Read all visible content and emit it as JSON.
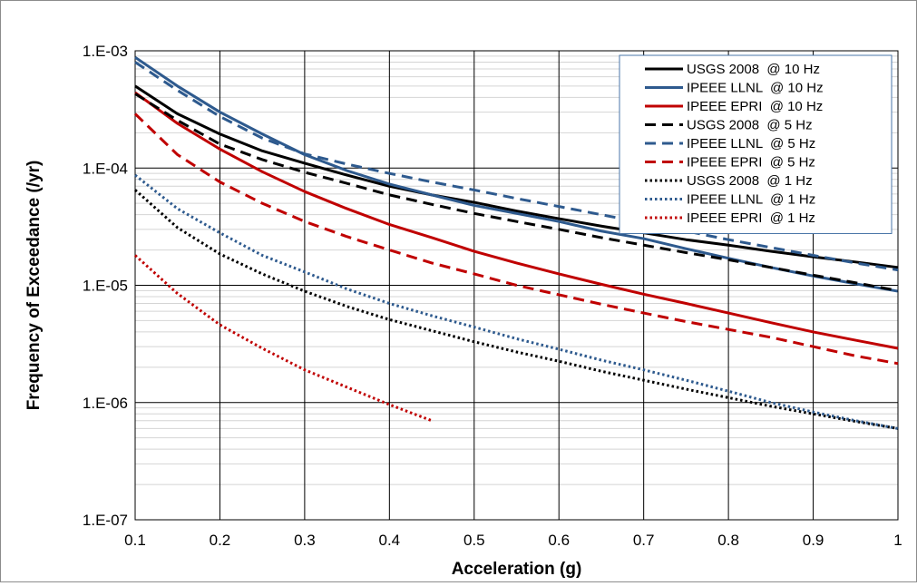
{
  "chart_data": {
    "type": "line",
    "title": "",
    "xlabel": "Acceleration (g)",
    "ylabel": "Frequency of Exceedance (/yr)",
    "x_scale": "linear",
    "y_scale": "log",
    "xlim": [
      0.1,
      1.0
    ],
    "ylim": [
      1e-07,
      0.001
    ],
    "x_ticks": [
      0.1,
      0.2,
      0.3,
      0.4,
      0.5,
      0.6,
      0.7,
      0.8,
      0.9,
      1.0
    ],
    "x_tick_labels": [
      "0.1",
      "0.2",
      "0.3",
      "0.4",
      "0.5",
      "0.6",
      "0.7",
      "0.8",
      "0.9",
      "1"
    ],
    "y_ticks": [
      1e-07,
      1e-06,
      1e-05,
      0.0001,
      0.001
    ],
    "y_tick_labels": [
      "1.E-07",
      "1.E-06",
      "1.E-05",
      "1.E-04",
      "1.E-03"
    ],
    "grid": {
      "major": true,
      "minor_y": true
    },
    "legend_position": "top-right",
    "x": [
      0.1,
      0.15,
      0.2,
      0.25,
      0.3,
      0.35,
      0.4,
      0.45,
      0.5,
      0.55,
      0.6,
      0.65,
      0.7,
      0.75,
      0.8,
      0.85,
      0.9,
      0.95,
      1.0
    ],
    "series": [
      {
        "name": "USGS 2008  @ 10 Hz",
        "color": "#000000",
        "dash": "solid",
        "values": [
          0.0005,
          0.00029,
          0.000195,
          0.00014,
          0.00011,
          8.7e-05,
          7e-05,
          5.9e-05,
          5.1e-05,
          4.3e-05,
          3.7e-05,
          3.2e-05,
          2.8e-05,
          2.45e-05,
          2.2e-05,
          1.95e-05,
          1.75e-05,
          1.58e-05,
          1.42e-05
        ]
      },
      {
        "name": "IPEEE LLNL  @ 10 Hz",
        "color": "#2e5a8e",
        "dash": "solid",
        "values": [
          0.00088,
          0.0005,
          0.0003,
          0.000195,
          0.00013,
          9.5e-05,
          7.3e-05,
          5.9e-05,
          4.8e-05,
          4.1e-05,
          3.5e-05,
          2.9e-05,
          2.5e-05,
          2.05e-05,
          1.7e-05,
          1.42e-05,
          1.2e-05,
          1.03e-05,
          8.9e-06
        ]
      },
      {
        "name": "IPEEE EPRI  @ 10 Hz",
        "color": "#c00000",
        "dash": "solid",
        "values": [
          0.00044,
          0.00024,
          0.000145,
          9.3e-05,
          6.3e-05,
          4.5e-05,
          3.3e-05,
          2.55e-05,
          1.95e-05,
          1.55e-05,
          1.25e-05,
          1.02e-05,
          8.4e-06,
          7e-06,
          5.8e-06,
          4.8e-06,
          4e-06,
          3.4e-06,
          2.9e-06
        ]
      },
      {
        "name": "USGS 2008  @ 5 Hz",
        "color": "#000000",
        "dash": "dashed",
        "values": [
          0.00043,
          0.000255,
          0.00016,
          0.000118,
          9.2e-05,
          7.4e-05,
          5.9e-05,
          4.9e-05,
          4.1e-05,
          3.5e-05,
          3e-05,
          2.55e-05,
          2.2e-05,
          1.9e-05,
          1.65e-05,
          1.42e-05,
          1.22e-05,
          1.05e-05,
          9e-06
        ]
      },
      {
        "name": "IPEEE LLNL  @ 5 Hz",
        "color": "#2e5a8e",
        "dash": "dashed",
        "values": [
          0.0008,
          0.00046,
          0.000275,
          0.00018,
          0.000132,
          0.000108,
          9e-05,
          7.6e-05,
          6.5e-05,
          5.5e-05,
          4.7e-05,
          4e-05,
          3.4e-05,
          2.9e-05,
          2.45e-05,
          2.1e-05,
          1.8e-05,
          1.55e-05,
          1.35e-05
        ]
      },
      {
        "name": "IPEEE EPRI  @ 5 Hz",
        "color": "#c00000",
        "dash": "dashed",
        "values": [
          0.00029,
          0.00013,
          7.6e-05,
          5e-05,
          3.5e-05,
          2.6e-05,
          2e-05,
          1.55e-05,
          1.25e-05,
          1e-05,
          8.3e-06,
          6.9e-06,
          5.8e-06,
          4.9e-06,
          4.2e-06,
          3.6e-06,
          3e-06,
          2.5e-06,
          2.15e-06
        ]
      },
      {
        "name": "USGS 2008  @ 1 Hz",
        "color": "#000000",
        "dash": "dotted",
        "values": [
          6.5e-05,
          3.1e-05,
          1.85e-05,
          1.25e-05,
          8.9e-06,
          6.6e-06,
          5.1e-06,
          4.1e-06,
          3.3e-06,
          2.7e-06,
          2.25e-06,
          1.85e-06,
          1.55e-06,
          1.3e-06,
          1.1e-06,
          9.3e-07,
          8e-07,
          6.9e-07,
          6e-07
        ]
      },
      {
        "name": "IPEEE LLNL  @ 1 Hz",
        "color": "#2e5a8e",
        "dash": "dotted",
        "values": [
          8.7e-05,
          4.5e-05,
          2.8e-05,
          1.8e-05,
          1.3e-05,
          9.3e-06,
          7e-06,
          5.5e-06,
          4.4e-06,
          3.5e-06,
          2.85e-06,
          2.3e-06,
          1.9e-06,
          1.55e-06,
          1.25e-06,
          1e-06,
          8.3e-07,
          7e-07,
          6e-07
        ]
      },
      {
        "name": "IPEEE EPRI  @ 1 Hz",
        "color": "#c00000",
        "dash": "dotted",
        "values": [
          1.8e-05,
          8.5e-06,
          4.6e-06,
          2.9e-06,
          1.9e-06,
          1.35e-06,
          9.6e-07,
          7e-07,
          null,
          null,
          null,
          null,
          null,
          null,
          null,
          null,
          null,
          null,
          null
        ]
      }
    ]
  }
}
